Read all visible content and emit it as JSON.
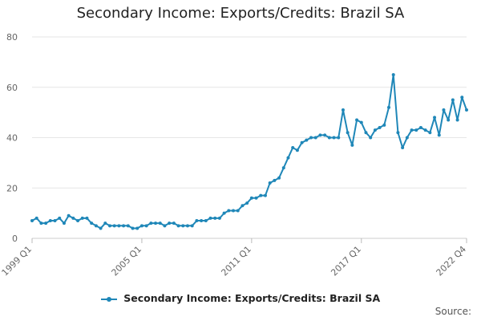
{
  "chart_data": {
    "type": "line",
    "title": "Secondary Income: Exports/Credits: Brazil SA",
    "xlabel": "",
    "ylabel": "",
    "ylim": [
      0,
      80
    ],
    "yticks": [
      "0",
      "20",
      "40",
      "60",
      "80"
    ],
    "xticks": [
      "1999 Q1",
      "2005 Q1",
      "2011 Q1",
      "2017 Q1",
      "2022 Q4"
    ],
    "x_start": "1999 Q1",
    "x_end": "2022 Q4",
    "grid": true,
    "legend_position": "bottom",
    "series": [
      {
        "name": "Secondary Income: Exports/Credits: Brazil SA",
        "color": "#1f87b8",
        "values": [
          7,
          8,
          6,
          6,
          7,
          7,
          8,
          6,
          9,
          8,
          7,
          8,
          8,
          6,
          5,
          4,
          6,
          5,
          5,
          5,
          5,
          5,
          4,
          4,
          5,
          5,
          6,
          6,
          6,
          5,
          6,
          6,
          5,
          5,
          5,
          5,
          7,
          7,
          7,
          8,
          8,
          8,
          10,
          11,
          11,
          11,
          13,
          14,
          16,
          16,
          17,
          17,
          22,
          23,
          24,
          28,
          32,
          36,
          35,
          38,
          39,
          40,
          40,
          41,
          41,
          40,
          40,
          40,
          51,
          42,
          37,
          47,
          46,
          42,
          40,
          43,
          44,
          45,
          52,
          65,
          42,
          36,
          40,
          43,
          43,
          44,
          43,
          42,
          48,
          41,
          51,
          47,
          55,
          47,
          56,
          51
        ]
      }
    ]
  },
  "source_label": "Source:"
}
